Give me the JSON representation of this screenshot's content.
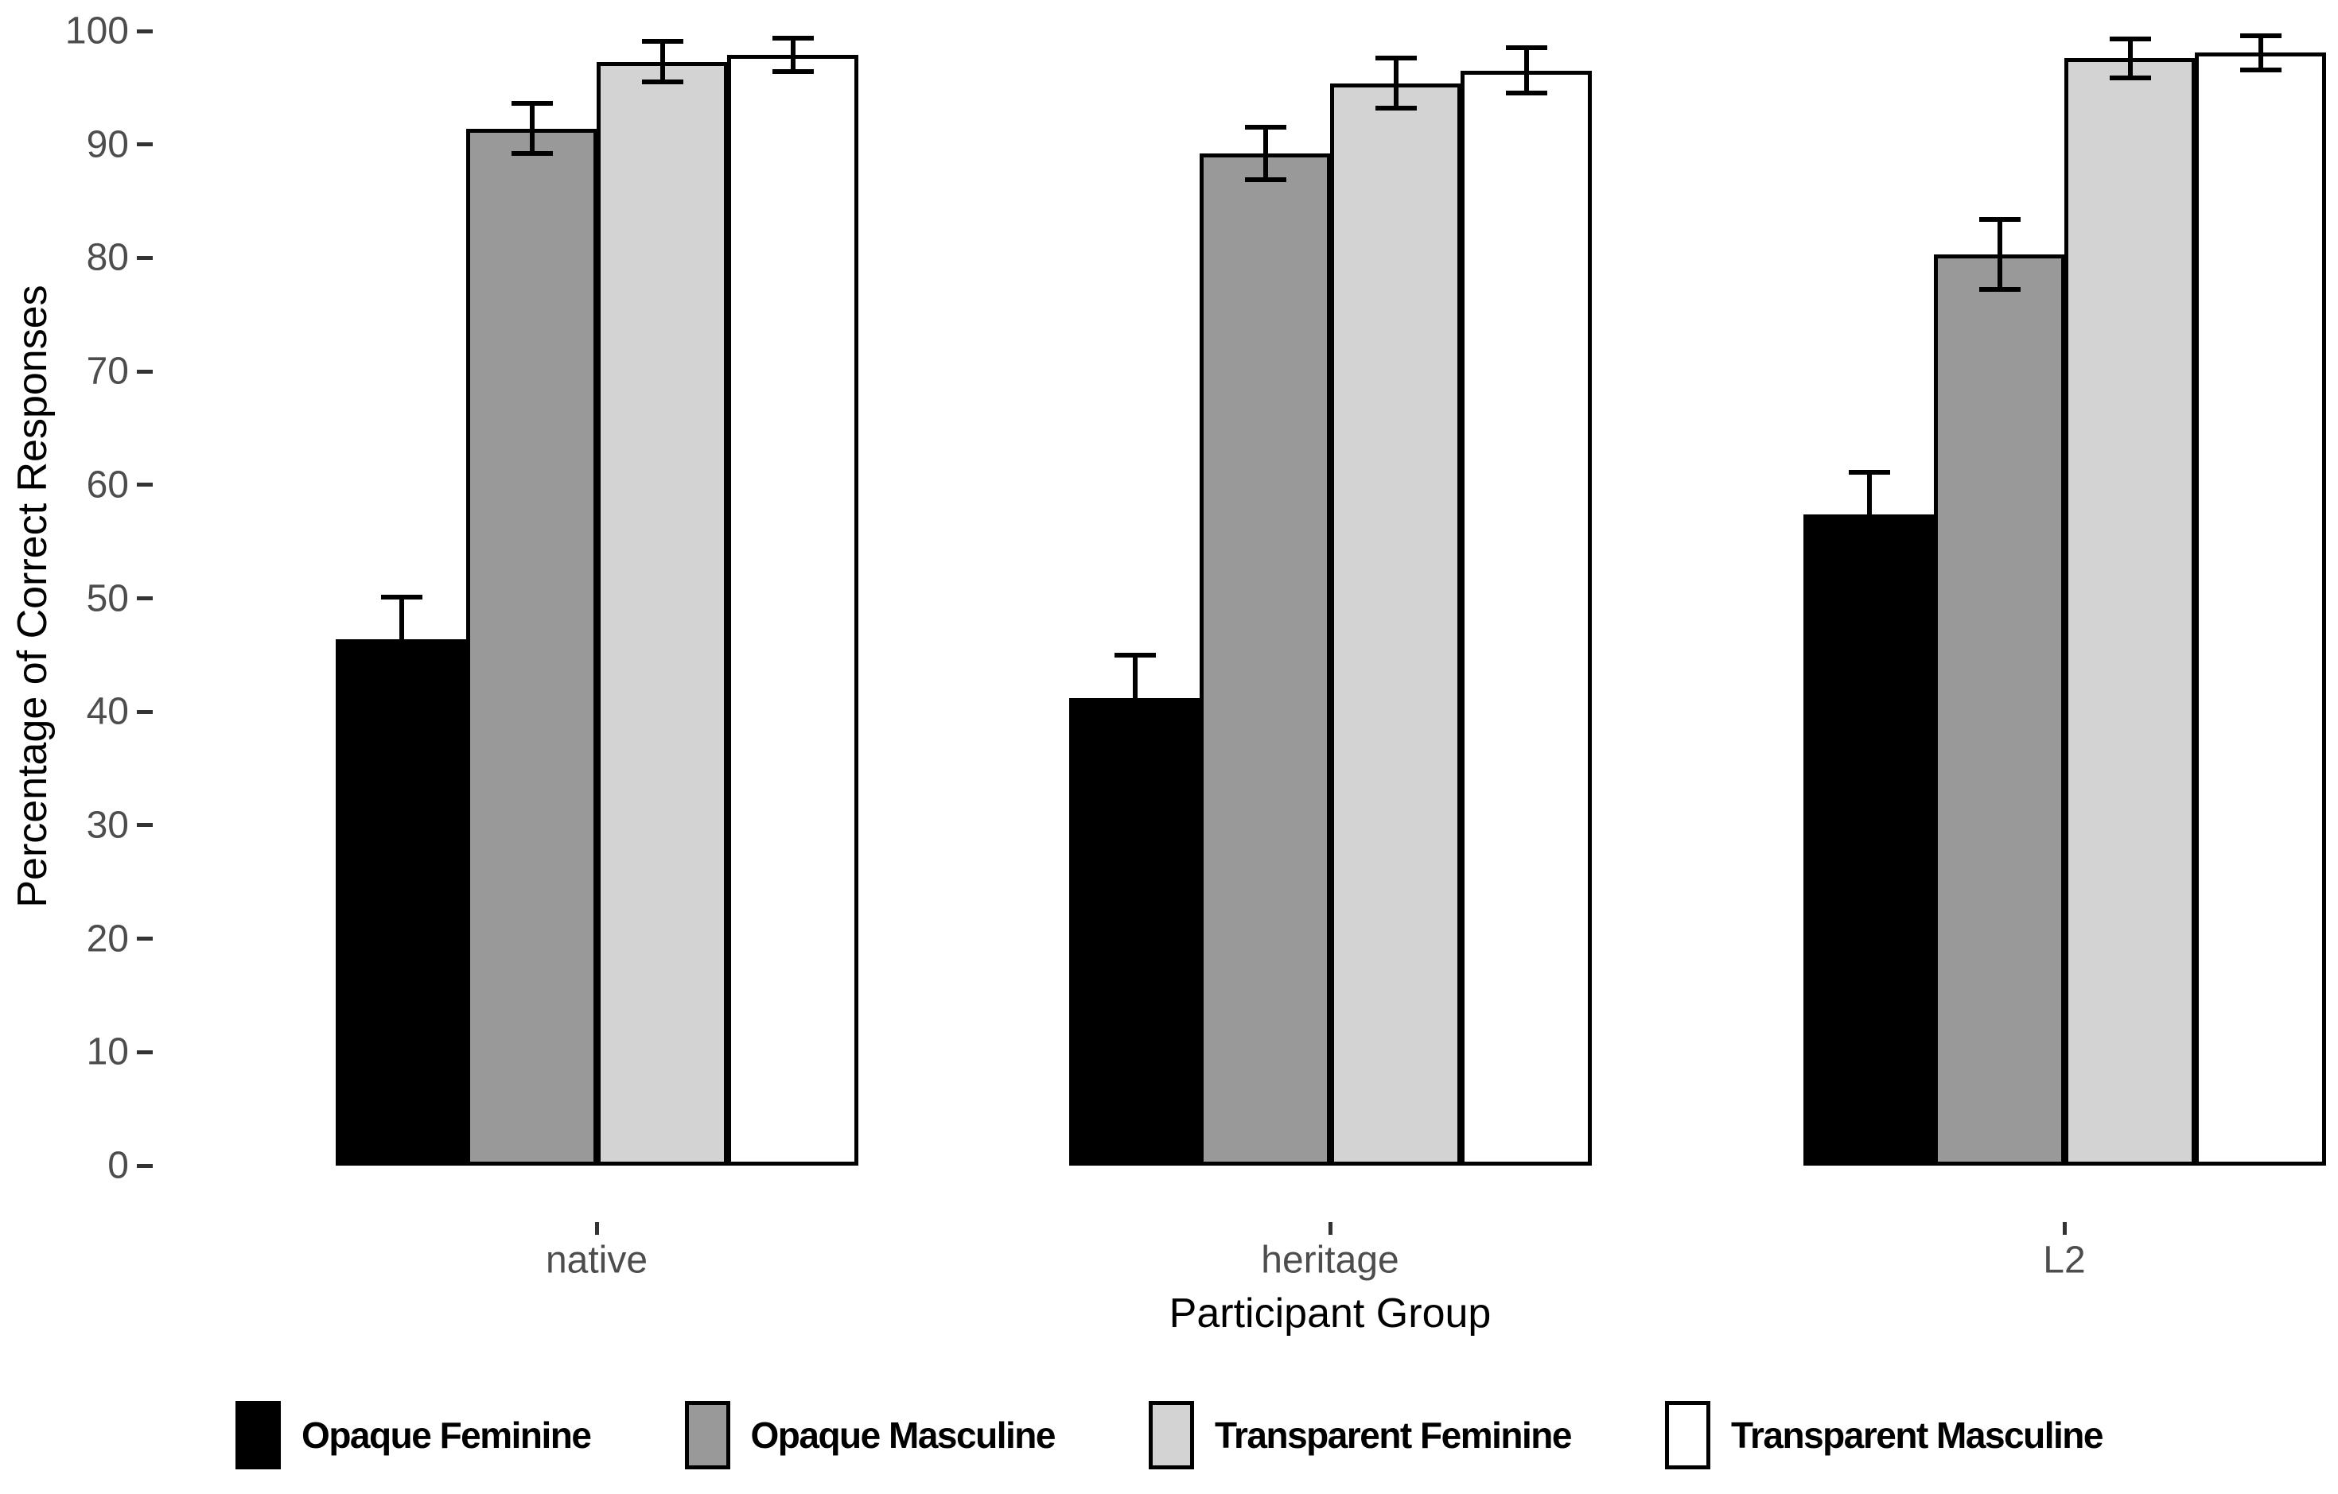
{
  "figure": {
    "background": "#ffffff"
  },
  "chart_data": {
    "type": "bar",
    "title": "",
    "xlabel": "Participant Group",
    "ylabel": "Percentage of Correct Responses",
    "ylim": [
      0,
      100
    ],
    "ytick_values": [
      0,
      10,
      20,
      30,
      40,
      50,
      60,
      70,
      80,
      90,
      100
    ],
    "categories": [
      "native",
      "heritage",
      "L2"
    ],
    "series": [
      {
        "name": "Opaque Feminine",
        "color": "#000000",
        "values": [
          46.4,
          41.2,
          57.4
        ],
        "errors": [
          3.7,
          3.8,
          3.7
        ],
        "error_style": "upper-only"
      },
      {
        "name": "Opaque Masculine",
        "color": "#999999",
        "values": [
          91.4,
          89.2,
          80.3
        ],
        "errors": [
          2.2,
          2.3,
          3.1
        ],
        "error_style": "both"
      },
      {
        "name": "Transparent Feminine",
        "color": "#d3d3d3",
        "values": [
          97.3,
          95.4,
          97.6
        ],
        "errors": [
          1.8,
          2.2,
          1.7
        ],
        "error_style": "both"
      },
      {
        "name": "Transparent Masculine",
        "color": "#ffffff",
        "values": [
          97.9,
          96.5,
          98.1
        ],
        "errors": [
          1.5,
          2.0,
          1.5
        ],
        "error_style": "both"
      }
    ],
    "bar_outline_color": "#000000",
    "tick_label_color": "#4d4d4d",
    "axis_title_color": "#000000",
    "legend_position": "bottom",
    "grid": false
  }
}
